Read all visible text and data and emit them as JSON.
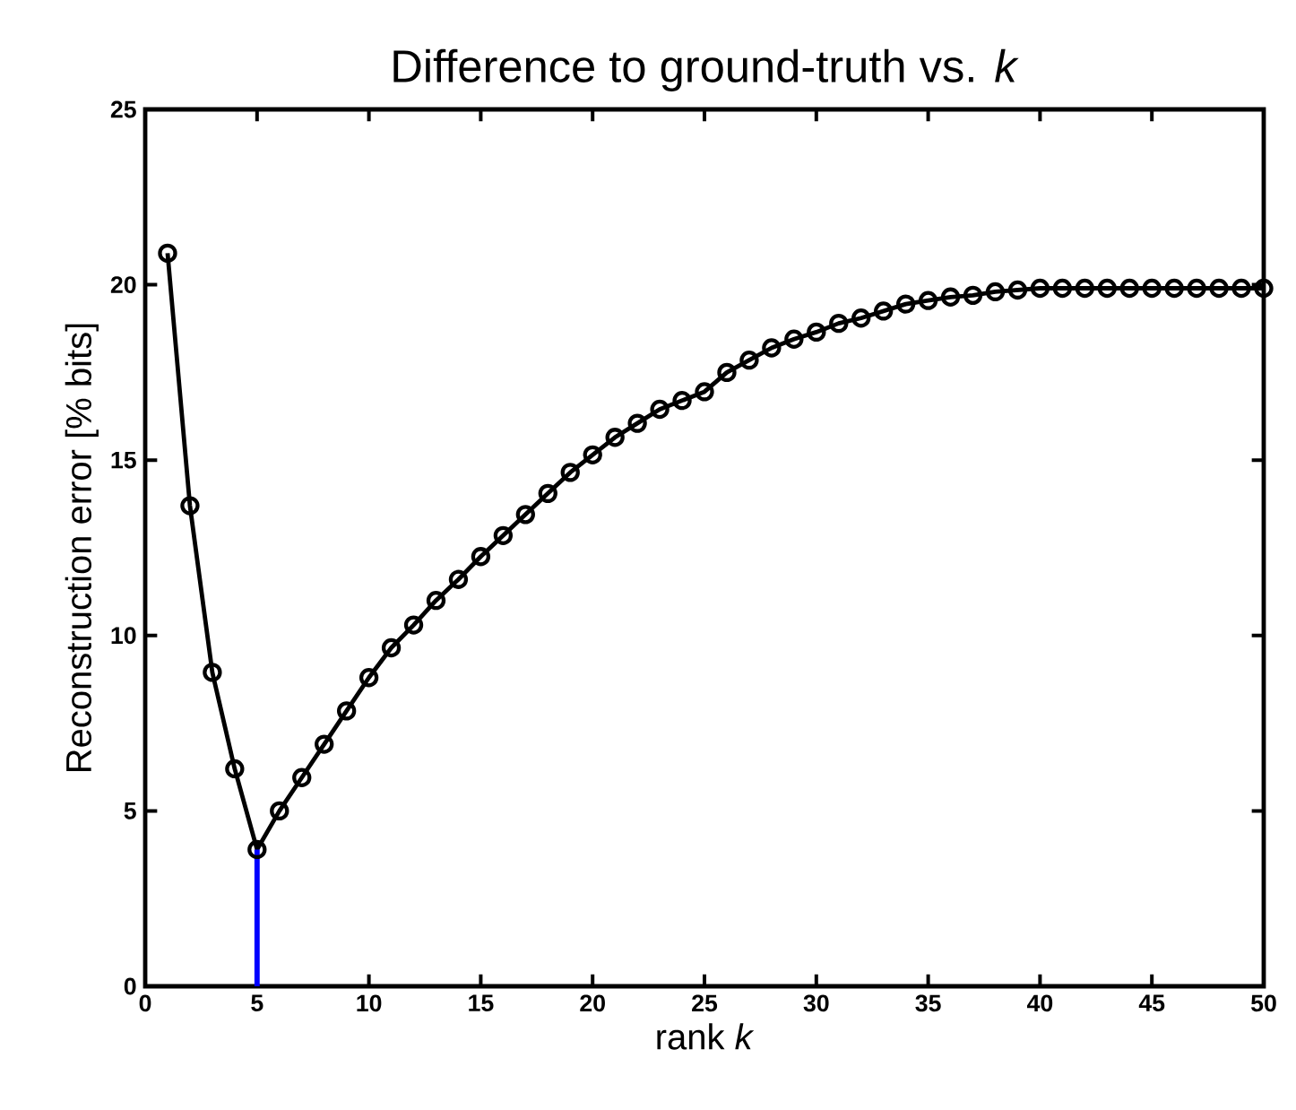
{
  "chart_data": {
    "type": "line",
    "title": "Difference to ground-truth vs. *k*",
    "xlabel": "rank *k*",
    "ylabel": "Reconstruction error [% bits]",
    "xlim": [
      0,
      50
    ],
    "ylim": [
      0,
      25
    ],
    "xticks": [
      0,
      5,
      10,
      15,
      20,
      25,
      30,
      35,
      40,
      45,
      50
    ],
    "yticks": [
      0,
      5,
      10,
      15,
      20,
      25
    ],
    "grid": false,
    "series": [
      {
        "color": "#000000",
        "marker": "circle",
        "x": [
          1,
          2,
          3,
          4,
          5,
          6,
          7,
          8,
          9,
          10,
          11,
          12,
          13,
          14,
          15,
          16,
          17,
          18,
          19,
          20,
          21,
          22,
          23,
          24,
          25,
          26,
          27,
          28,
          29,
          30,
          31,
          32,
          33,
          34,
          35,
          36,
          37,
          38,
          39,
          40,
          41,
          42,
          43,
          44,
          45,
          46,
          47,
          48,
          49,
          50
        ],
        "values": [
          20.9,
          13.7,
          8.95,
          6.2,
          3.9,
          5.0,
          5.95,
          6.9,
          7.85,
          8.8,
          9.65,
          10.3,
          11.0,
          11.6,
          12.25,
          12.85,
          13.45,
          14.05,
          14.65,
          15.15,
          15.65,
          16.05,
          16.45,
          16.7,
          16.95,
          17.5,
          17.85,
          18.2,
          18.45,
          18.65,
          18.9,
          19.05,
          19.25,
          19.45,
          19.55,
          19.65,
          19.7,
          19.8,
          19.85,
          19.9,
          19.9,
          19.9,
          19.9,
          19.9,
          19.9,
          19.9,
          19.9,
          19.9,
          19.9,
          19.9
        ]
      },
      {
        "color": "#0000ff",
        "marker": "none",
        "x": [
          5,
          5
        ],
        "values": [
          0,
          3.9
        ]
      }
    ]
  }
}
